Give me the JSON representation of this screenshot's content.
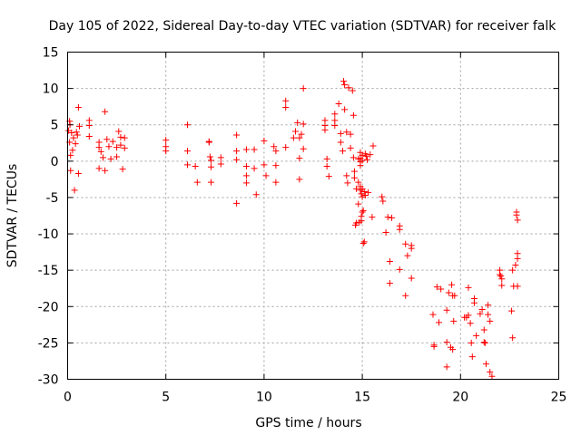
{
  "chart_data": {
    "type": "scatter",
    "title": "Day 105 of 2022, Sidereal Day-to-day VTEC variation (SDTVAR) for receiver falk",
    "xlabel": "GPS time / hours",
    "ylabel": "SDTVAR / TECUs",
    "xlim": [
      0,
      25
    ],
    "ylim": [
      -30,
      15
    ],
    "xticks": [
      0,
      5,
      10,
      15,
      20,
      25
    ],
    "yticks": [
      -30,
      -25,
      -20,
      -15,
      -10,
      -5,
      0,
      5,
      10,
      15
    ],
    "xtick_labels": [
      "0",
      "5",
      "10",
      "15",
      "20",
      "25"
    ],
    "ytick_labels": [
      "-30",
      "-25",
      "-20",
      "-15",
      "-10",
      "-5",
      "0",
      "5",
      "10",
      "15"
    ],
    "grid": true,
    "marker": "plus",
    "color": "#ff0000",
    "series": [
      {
        "name": "SDTVAR",
        "points": [
          [
            0.05,
            4.2
          ],
          [
            0.1,
            5.5
          ],
          [
            0.1,
            2.6
          ],
          [
            0.12,
            5.0
          ],
          [
            0.15,
            0.8
          ],
          [
            0.15,
            -1.3
          ],
          [
            0.2,
            3.9
          ],
          [
            0.25,
            1.5
          ],
          [
            0.3,
            3.2
          ],
          [
            0.35,
            -4.0
          ],
          [
            0.4,
            2.4
          ],
          [
            0.45,
            4.0
          ],
          [
            0.5,
            3.6
          ],
          [
            0.55,
            7.4
          ],
          [
            0.55,
            -1.7
          ],
          [
            0.6,
            4.8
          ],
          [
            1.1,
            5.6
          ],
          [
            1.1,
            4.9
          ],
          [
            1.1,
            3.4
          ],
          [
            1.6,
            2.6
          ],
          [
            1.6,
            1.9
          ],
          [
            1.6,
            -1.0
          ],
          [
            1.7,
            1.3
          ],
          [
            1.8,
            0.5
          ],
          [
            1.9,
            6.8
          ],
          [
            1.9,
            -1.3
          ],
          [
            2.0,
            3.0
          ],
          [
            2.1,
            2.0
          ],
          [
            2.2,
            0.3
          ],
          [
            2.3,
            2.7
          ],
          [
            2.5,
            1.9
          ],
          [
            2.5,
            0.6
          ],
          [
            2.6,
            4.1
          ],
          [
            2.7,
            3.3
          ],
          [
            2.7,
            2.2
          ],
          [
            2.8,
            -1.1
          ],
          [
            2.9,
            3.2
          ],
          [
            2.9,
            1.8
          ],
          [
            5.0,
            2.9
          ],
          [
            5.0,
            2.0
          ],
          [
            5.0,
            1.4
          ],
          [
            6.1,
            5.0
          ],
          [
            6.1,
            1.4
          ],
          [
            6.1,
            -0.5
          ],
          [
            6.5,
            -0.7
          ],
          [
            6.6,
            -2.9
          ],
          [
            7.2,
            2.7
          ],
          [
            7.2,
            2.6
          ],
          [
            7.25,
            0.6
          ],
          [
            7.3,
            0.1
          ],
          [
            7.3,
            -0.8
          ],
          [
            7.3,
            -2.9
          ],
          [
            7.8,
            0.5
          ],
          [
            7.8,
            -0.4
          ],
          [
            8.6,
            3.6
          ],
          [
            8.6,
            1.4
          ],
          [
            8.6,
            0.2
          ],
          [
            8.6,
            -5.8
          ],
          [
            9.1,
            1.6
          ],
          [
            9.1,
            -0.7
          ],
          [
            9.1,
            -2.0
          ],
          [
            9.1,
            -3.0
          ],
          [
            9.5,
            1.6
          ],
          [
            9.5,
            -1.0
          ],
          [
            9.6,
            -4.6
          ],
          [
            10.0,
            2.8
          ],
          [
            10.0,
            -0.5
          ],
          [
            10.1,
            -2.0
          ],
          [
            10.5,
            2.0
          ],
          [
            10.6,
            1.4
          ],
          [
            10.6,
            -0.6
          ],
          [
            10.6,
            -2.9
          ],
          [
            11.1,
            8.3
          ],
          [
            11.1,
            7.4
          ],
          [
            11.1,
            1.9
          ],
          [
            11.5,
            3.2
          ],
          [
            11.6,
            4.1
          ],
          [
            11.7,
            5.3
          ],
          [
            11.8,
            3.2
          ],
          [
            11.8,
            0.4
          ],
          [
            11.8,
            -2.5
          ],
          [
            11.9,
            3.7
          ],
          [
            12.0,
            10.0
          ],
          [
            12.0,
            5.1
          ],
          [
            12.0,
            1.7
          ],
          [
            13.1,
            5.6
          ],
          [
            13.1,
            4.9
          ],
          [
            13.1,
            4.3
          ],
          [
            13.2,
            0.3
          ],
          [
            13.2,
            -0.7
          ],
          [
            13.3,
            -2.1
          ],
          [
            13.6,
            6.5
          ],
          [
            13.6,
            5.6
          ],
          [
            13.6,
            4.9
          ],
          [
            13.8,
            7.9
          ],
          [
            13.9,
            3.8
          ],
          [
            13.9,
            2.6
          ],
          [
            14.0,
            1.4
          ],
          [
            14.05,
            11.0
          ],
          [
            14.1,
            10.5
          ],
          [
            14.1,
            7.1
          ],
          [
            14.2,
            4.0
          ],
          [
            14.2,
            -2.0
          ],
          [
            14.25,
            -3.0
          ],
          [
            14.3,
            10.1
          ],
          [
            14.4,
            3.7
          ],
          [
            14.4,
            1.8
          ],
          [
            14.5,
            9.7
          ],
          [
            14.55,
            6.3
          ],
          [
            14.55,
            0.5
          ],
          [
            14.6,
            -1.4
          ],
          [
            14.6,
            -2.3
          ],
          [
            14.65,
            -8.8
          ],
          [
            14.7,
            -3.8
          ],
          [
            14.7,
            -8.5
          ],
          [
            14.8,
            0.3
          ],
          [
            14.8,
            -2.9
          ],
          [
            14.8,
            -5.9
          ],
          [
            14.85,
            -8.4
          ],
          [
            14.9,
            1.2
          ],
          [
            14.9,
            0.4
          ],
          [
            14.9,
            -0.1
          ],
          [
            14.9,
            -0.6
          ],
          [
            14.9,
            -3.5
          ],
          [
            14.9,
            -4.0
          ],
          [
            14.95,
            -4.5
          ],
          [
            14.95,
            -7.6
          ],
          [
            14.95,
            -8.2
          ],
          [
            15.0,
            0.8
          ],
          [
            15.0,
            0.1
          ],
          [
            15.0,
            -3.8
          ],
          [
            15.0,
            -4.9
          ],
          [
            15.0,
            -7.0
          ],
          [
            15.05,
            -6.8
          ],
          [
            15.05,
            -11.3
          ],
          [
            15.1,
            -4.2
          ],
          [
            15.1,
            -11.1
          ],
          [
            15.15,
            1.0
          ],
          [
            15.15,
            -4.7
          ],
          [
            15.2,
            0.7
          ],
          [
            15.25,
            0.2
          ],
          [
            15.3,
            -4.3
          ],
          [
            15.4,
            0.9
          ],
          [
            15.5,
            -7.7
          ],
          [
            15.55,
            2.1
          ],
          [
            16.0,
            -4.9
          ],
          [
            16.05,
            -5.5
          ],
          [
            16.2,
            -9.8
          ],
          [
            16.3,
            -7.7
          ],
          [
            16.4,
            -13.8
          ],
          [
            16.4,
            -16.8
          ],
          [
            16.5,
            -7.8
          ],
          [
            16.9,
            -8.9
          ],
          [
            16.9,
            -9.4
          ],
          [
            16.9,
            -14.9
          ],
          [
            17.2,
            -18.5
          ],
          [
            17.2,
            -11.4
          ],
          [
            17.3,
            -13.0
          ],
          [
            17.5,
            -11.6
          ],
          [
            17.5,
            -12.0
          ],
          [
            17.5,
            -16.1
          ],
          [
            18.6,
            -21.1
          ],
          [
            18.65,
            -25.3
          ],
          [
            18.65,
            -25.5
          ],
          [
            18.8,
            -17.3
          ],
          [
            18.9,
            -22.2
          ],
          [
            19.0,
            -17.6
          ],
          [
            19.3,
            -20.5
          ],
          [
            19.3,
            -24.9
          ],
          [
            19.3,
            -28.3
          ],
          [
            19.4,
            -18.1
          ],
          [
            19.5,
            -25.6
          ],
          [
            19.55,
            -17.0
          ],
          [
            19.6,
            -18.5
          ],
          [
            19.6,
            -25.9
          ],
          [
            19.65,
            -22.0
          ],
          [
            19.7,
            -18.5
          ],
          [
            20.2,
            -21.5
          ],
          [
            20.3,
            -21.5
          ],
          [
            20.4,
            -17.4
          ],
          [
            20.4,
            -21.2
          ],
          [
            20.5,
            -22.3
          ],
          [
            20.55,
            -25.0
          ],
          [
            20.6,
            -26.9
          ],
          [
            20.7,
            -19.5
          ],
          [
            20.7,
            -18.9
          ],
          [
            20.8,
            -24.0
          ],
          [
            21.0,
            -21.0
          ],
          [
            21.1,
            -20.4
          ],
          [
            21.2,
            -23.2
          ],
          [
            21.2,
            -24.9
          ],
          [
            21.25,
            -25.0
          ],
          [
            21.3,
            -27.9
          ],
          [
            21.4,
            -19.8
          ],
          [
            21.4,
            -21.1
          ],
          [
            21.5,
            -22.0
          ],
          [
            21.5,
            -29.0
          ],
          [
            21.6,
            -29.6
          ],
          [
            22.0,
            -15.0
          ],
          [
            22.0,
            -15.6
          ],
          [
            22.05,
            -15.8
          ],
          [
            22.1,
            -16.2
          ],
          [
            22.1,
            -17.1
          ],
          [
            22.6,
            -20.6
          ],
          [
            22.65,
            -15.0
          ],
          [
            22.65,
            -24.3
          ],
          [
            22.7,
            -17.2
          ],
          [
            22.8,
            -14.3
          ],
          [
            22.85,
            -7.0
          ],
          [
            22.85,
            -7.4
          ],
          [
            22.9,
            -8.1
          ],
          [
            22.9,
            -12.7
          ],
          [
            22.9,
            -13.4
          ],
          [
            22.9,
            -17.2
          ]
        ]
      }
    ]
  }
}
